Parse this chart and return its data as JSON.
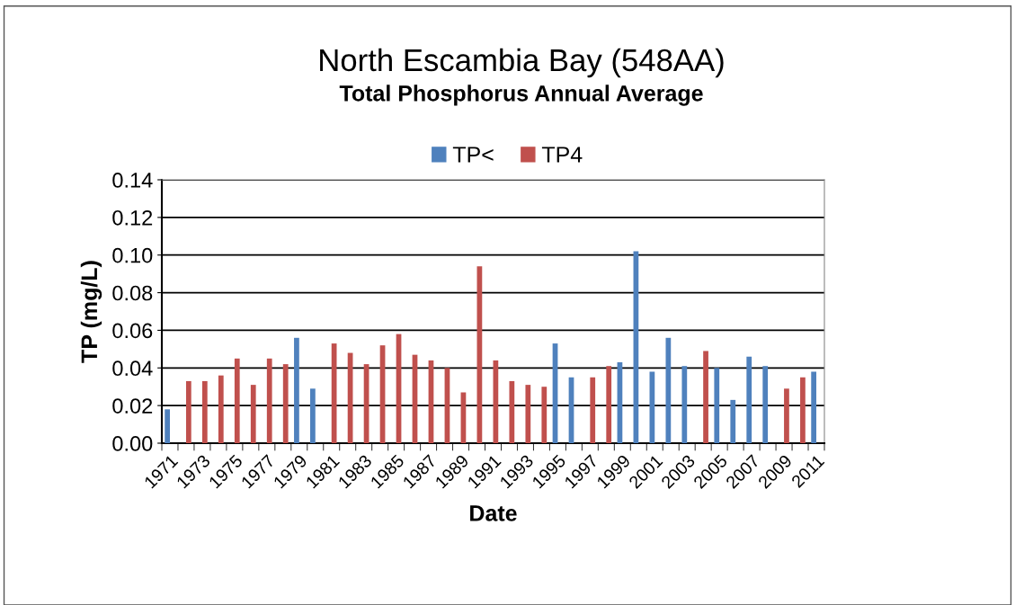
{
  "chart_data": {
    "type": "bar",
    "title": "North Escambia Bay (548AA)",
    "subtitle": "Total Phosphorus Annual Average",
    "xlabel": "Date",
    "ylabel": "TP (mg/L)",
    "categories": [
      "1971",
      null,
      "1973",
      null,
      "1975",
      null,
      "1977",
      null,
      "1979",
      null,
      "1981",
      null,
      "1983",
      null,
      "1985",
      null,
      "1987",
      null,
      "1989",
      null,
      "1991",
      null,
      "1993",
      null,
      "1995",
      null,
      "1997",
      null,
      "1999",
      null,
      "2001",
      null,
      "2003",
      null,
      "2005",
      null,
      "2007",
      null,
      "2009",
      null,
      "2011"
    ],
    "series": [
      {
        "name": "TP<",
        "color": "#4f81bd",
        "values": [
          0.018,
          null,
          null,
          null,
          null,
          null,
          null,
          null,
          0.056,
          0.029,
          null,
          null,
          null,
          null,
          null,
          null,
          null,
          null,
          null,
          null,
          null,
          null,
          null,
          null,
          0.053,
          0.035,
          null,
          null,
          0.043,
          0.102,
          0.038,
          0.056,
          0.041,
          null,
          0.04,
          0.023,
          0.046,
          0.041,
          null,
          null,
          0.038
        ]
      },
      {
        "name": "TP4",
        "color": "#c0504d",
        "values": [
          null,
          0.033,
          0.033,
          0.036,
          0.045,
          0.031,
          0.045,
          0.042,
          null,
          null,
          0.053,
          0.048,
          0.042,
          0.052,
          0.058,
          0.047,
          0.044,
          0.04,
          0.027,
          0.094,
          0.044,
          0.033,
          0.031,
          0.03,
          null,
          null,
          0.035,
          0.041,
          null,
          null,
          null,
          null,
          null,
          0.049,
          null,
          null,
          null,
          null,
          0.029,
          0.035,
          null
        ]
      }
    ],
    "ylim": [
      0,
      0.14
    ],
    "yticks": [
      {
        "value": 0,
        "label": "0.00"
      },
      {
        "value": 0.02,
        "label": "0.02"
      },
      {
        "value": 0.04,
        "label": "0.04"
      },
      {
        "value": 0.06,
        "label": "0.06"
      },
      {
        "value": 0.08,
        "label": "0.08"
      },
      {
        "value": 0.1,
        "label": "0.10"
      },
      {
        "value": 0.12,
        "label": "0.12"
      },
      {
        "value": 0.14,
        "label": "0.14"
      }
    ],
    "grid": "y",
    "legend": "top"
  }
}
